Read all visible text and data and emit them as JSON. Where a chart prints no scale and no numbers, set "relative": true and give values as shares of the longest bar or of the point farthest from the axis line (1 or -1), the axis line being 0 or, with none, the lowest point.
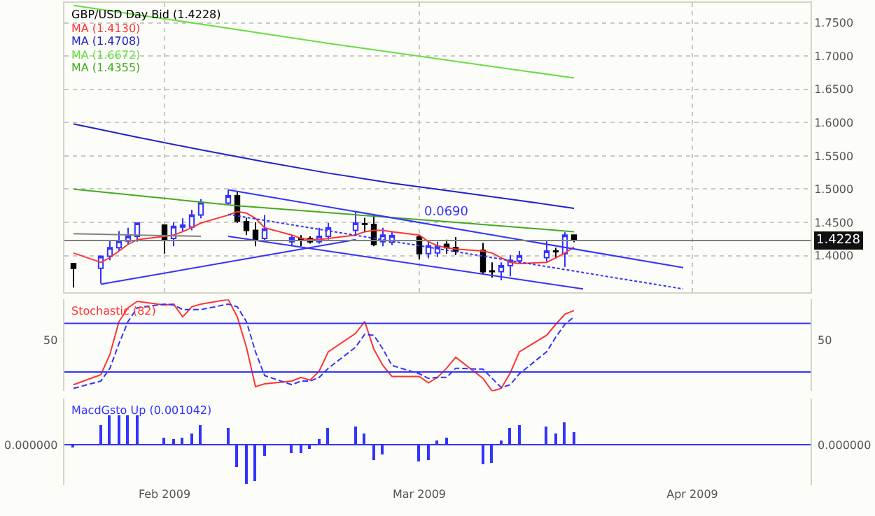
{
  "chart_data": [
    {
      "type": "candlestick",
      "legend": "top left",
      "grid": true,
      "tick_labels": "y",
      "marker": "none",
      "x": [
        "2009-01-23",
        "2009-01-26",
        "2009-01-27",
        "2009-01-28",
        "2009-01-29",
        "2009-01-30",
        "2009-02-02",
        "2009-02-03",
        "2009-02-04",
        "2009-02-05",
        "2009-02-06",
        "2009-02-09",
        "2009-02-10",
        "2009-02-11",
        "2009-02-12",
        "2009-02-13",
        "2009-02-16",
        "2009-02-17",
        "2009-02-18",
        "2009-02-19",
        "2009-02-20",
        "2009-02-23",
        "2009-02-24",
        "2009-02-25",
        "2009-02-26",
        "2009-02-27",
        "2009-03-02",
        "2009-03-03",
        "2009-03-04",
        "2009-03-05",
        "2009-03-06",
        "2009-03-09",
        "2009-03-10",
        "2009-03-11",
        "2009-03-12",
        "2009-03-13",
        "2009-03-16",
        "2009-03-17",
        "2009-03-18",
        "2009-03-19"
      ],
      "xlim": [
        "2009-01-22",
        "2009-04-14"
      ],
      "xticks": [
        {
          "value": "2009-02-02",
          "label": null
        },
        {
          "value": "2009-03-02",
          "label": null
        },
        {
          "value": "2009-04-01",
          "label": null
        }
      ],
      "ylim": [
        1.345,
        1.78
      ],
      "yticks": [
        {
          "value": 1.4,
          "label": "1.4000"
        },
        {
          "value": 1.45,
          "label": "1.4500"
        },
        {
          "value": 1.5,
          "label": "1.5000"
        },
        {
          "value": 1.55,
          "label": "1.5500"
        },
        {
          "value": 1.6,
          "label": "1.6000"
        },
        {
          "value": 1.65,
          "label": "1.6500"
        },
        {
          "value": 1.7,
          "label": "1.7000"
        },
        {
          "value": 1.75,
          "label": "1.7500"
        }
      ],
      "series": [
        {
          "type": "candlestick",
          "name": "GBP/USD Day Bid (1.4228)",
          "colors": [
            "#000000",
            "#3333ff",
            "#3333ff",
            "#3333ff",
            "#3333ff",
            "#3333ff",
            "#000000",
            "#3333ff",
            "#3333ff",
            "#3333ff",
            "#3333ff",
            "#3333ff",
            "#000000",
            "#000000",
            "#000000",
            "#3333ff",
            "#3333ff",
            "#000000",
            "#000000",
            "#3333ff",
            "#3333ff",
            "#3333ff",
            "#000000",
            "#000000",
            "#3333ff",
            "#3333ff",
            "#000000",
            "#3333ff",
            "#3333ff",
            "#000000",
            "#000000",
            "#000000",
            "#000000",
            "#3333ff",
            "#3333ff",
            "#3333ff",
            "#3333ff",
            "#000000",
            "#3333ff",
            "#000000"
          ],
          "ohlc": [
            [
              1.388,
              1.389,
              1.352,
              1.381
            ],
            [
              1.381,
              1.4,
              1.358,
              1.399
            ],
            [
              1.399,
              1.423,
              1.393,
              1.412
            ],
            [
              1.412,
              1.437,
              1.407,
              1.422
            ],
            [
              1.422,
              1.442,
              1.417,
              1.429
            ],
            [
              1.429,
              1.45,
              1.421,
              1.449
            ],
            [
              1.446,
              1.446,
              1.403,
              1.424
            ],
            [
              1.426,
              1.45,
              1.414,
              1.444
            ],
            [
              1.443,
              1.456,
              1.437,
              1.446
            ],
            [
              1.443,
              1.469,
              1.438,
              1.461
            ],
            [
              1.461,
              1.485,
              1.456,
              1.48
            ],
            [
              1.479,
              1.499,
              1.476,
              1.49
            ],
            [
              1.49,
              1.496,
              1.449,
              1.452
            ],
            [
              1.451,
              1.457,
              1.431,
              1.438
            ],
            [
              1.438,
              1.45,
              1.414,
              1.424
            ],
            [
              1.426,
              1.461,
              1.421,
              1.44
            ],
            [
              1.421,
              1.431,
              1.415,
              1.427
            ],
            [
              1.426,
              1.431,
              1.414,
              1.423
            ],
            [
              1.426,
              1.429,
              1.418,
              1.421
            ],
            [
              1.421,
              1.442,
              1.418,
              1.429
            ],
            [
              1.429,
              1.449,
              1.424,
              1.442
            ],
            [
              1.438,
              1.466,
              1.431,
              1.449
            ],
            [
              1.448,
              1.457,
              1.435,
              1.447
            ],
            [
              1.447,
              1.462,
              1.414,
              1.417
            ],
            [
              1.421,
              1.442,
              1.414,
              1.431
            ],
            [
              1.42,
              1.437,
              1.416,
              1.43
            ],
            [
              1.428,
              1.431,
              1.394,
              1.403
            ],
            [
              1.403,
              1.421,
              1.396,
              1.415
            ],
            [
              1.404,
              1.421,
              1.398,
              1.414
            ],
            [
              1.417,
              1.424,
              1.403,
              1.412
            ],
            [
              1.412,
              1.428,
              1.401,
              1.407
            ],
            [
              1.408,
              1.419,
              1.372,
              1.376
            ],
            [
              1.377,
              1.39,
              1.367,
              1.376
            ],
            [
              1.376,
              1.39,
              1.363,
              1.385
            ],
            [
              1.385,
              1.401,
              1.369,
              1.393
            ],
            [
              1.392,
              1.407,
              1.388,
              1.4
            ],
            [
              1.397,
              1.423,
              1.391,
              1.407
            ],
            [
              1.407,
              1.412,
              1.396,
              1.406
            ],
            [
              1.403,
              1.435,
              1.383,
              1.431
            ],
            [
              1.431,
              1.431,
              1.42,
              1.423
            ]
          ]
        },
        {
          "type": "line",
          "name": "MA (1.4130)",
          "color": "#ff3333",
          "values": [
            1.404,
            1.39,
            1.397,
            1.407,
            1.417,
            1.424,
            1.429,
            1.431,
            1.436,
            1.442,
            1.449,
            1.461,
            1.466,
            1.464,
            1.456,
            1.442,
            1.431,
            1.426,
            1.424,
            1.424,
            1.426,
            1.431,
            1.436,
            1.438,
            1.438,
            1.436,
            1.431,
            1.421,
            1.415,
            1.412,
            1.41,
            1.407,
            1.404,
            1.397,
            1.39,
            1.388,
            1.39,
            1.397,
            1.404,
            1.413
          ]
        },
        {
          "type": "line",
          "name": "MA (1.4708)",
          "color": "#2222cc",
          "x": [
            "2009-01-23",
            "2009-01-30",
            "2009-02-06",
            "2009-02-13",
            "2009-02-20",
            "2009-02-27",
            "2009-03-06",
            "2009-03-13",
            "2009-03-19"
          ],
          "values": [
            1.598,
            1.578,
            1.559,
            1.541,
            1.524,
            1.509,
            1.496,
            1.483,
            1.471
          ]
        },
        {
          "type": "line",
          "name": "MA (1.6672)",
          "color": "#66dd44",
          "x": [
            "2009-01-23",
            "2009-02-06",
            "2009-02-20",
            "2009-03-06",
            "2009-03-19"
          ],
          "values": [
            1.776,
            1.748,
            1.719,
            1.692,
            1.667
          ]
        },
        {
          "type": "line",
          "name": "MA (1.4355)",
          "color": "#44aa22",
          "x": [
            "2009-01-23",
            "2009-02-10",
            "2009-03-06",
            "2009-03-19"
          ],
          "values": [
            1.5,
            1.475,
            1.45,
            1.436
          ]
        },
        {
          "type": "line",
          "color": "#3333ff",
          "x": [
            "2009-02-09",
            "2009-03-31"
          ],
          "values": [
            1.499,
            1.382
          ]
        },
        {
          "type": "line",
          "color": "#3333ff",
          "x": [
            "2009-02-09",
            "2009-03-20"
          ],
          "values": [
            1.429,
            1.35
          ]
        },
        {
          "type": "line",
          "color": "#3333ff",
          "x": [
            "2009-01-26",
            "2009-02-23"
          ],
          "values": [
            1.357,
            1.424
          ]
        },
        {
          "type": "line",
          "color": "#3333ff",
          "line_style": "dotted",
          "x": [
            "2009-02-09",
            "2009-03-31"
          ],
          "values": [
            1.462,
            1.35
          ]
        },
        {
          "type": "line",
          "color": "#808080",
          "x": [
            "2009-01-23",
            "2009-02-06"
          ],
          "values": [
            1.433,
            1.429
          ]
        }
      ],
      "ref_lines": [
        {
          "axis": "y",
          "value": 1.4228,
          "label": "1.4228",
          "color": "#808080"
        }
      ],
      "annotations": [
        {
          "text": "0.0690",
          "x": "2009-03-05",
          "y": 1.451
        }
      ]
    },
    {
      "type": "line",
      "legend": "top left",
      "relative": true,
      "marker": "none",
      "x": [
        "2009-01-23",
        "2009-01-26",
        "2009-01-27",
        "2009-01-28",
        "2009-01-29",
        "2009-01-30",
        "2009-02-02",
        "2009-02-03",
        "2009-02-04",
        "2009-02-05",
        "2009-02-06",
        "2009-02-09",
        "2009-02-10",
        "2009-02-11",
        "2009-02-12",
        "2009-02-13",
        "2009-02-16",
        "2009-02-17",
        "2009-02-18",
        "2009-02-19",
        "2009-02-20",
        "2009-02-23",
        "2009-02-24",
        "2009-02-25",
        "2009-02-26",
        "2009-02-27",
        "2009-03-02",
        "2009-03-03",
        "2009-03-04",
        "2009-03-05",
        "2009-03-06",
        "2009-03-09",
        "2009-03-10",
        "2009-03-11",
        "2009-03-12",
        "2009-03-13",
        "2009-03-16",
        "2009-03-17",
        "2009-03-18",
        "2009-03-19"
      ],
      "xlim": [
        "2009-01-22",
        "2009-04-14"
      ],
      "tick_labels": false,
      "series": [
        {
          "name": "Stochastic (82)",
          "color": "#ff3333",
          "values": [
            0.07,
            0.18,
            0.4,
            0.76,
            0.91,
            0.98,
            0.94,
            0.95,
            0.81,
            0.92,
            0.95,
            1,
            0.81,
            0.48,
            0.05,
            0.08,
            0.11,
            0.15,
            0.12,
            0.22,
            0.43,
            0.63,
            0.76,
            0.46,
            0.28,
            0.16,
            0.16,
            0.09,
            0.15,
            0.25,
            0.37,
            0.14,
            0,
            0.03,
            0.2,
            0.43,
            0.61,
            0.73,
            0.84,
            0.88
          ]
        },
        {
          "color": "#3333ff",
          "line_style": "dashed",
          "values": [
            0.03,
            0.11,
            0.25,
            0.52,
            0.76,
            0.91,
            0.95,
            0.94,
            0.89,
            0.89,
            0.89,
            0.95,
            0.92,
            0.76,
            0.43,
            0.17,
            0.07,
            0.11,
            0.11,
            0.15,
            0.25,
            0.48,
            0.62,
            0.61,
            0.46,
            0.28,
            0.19,
            0.14,
            0.15,
            0.15,
            0.25,
            0.24,
            0.14,
            0.04,
            0.07,
            0.19,
            0.43,
            0.59,
            0.73,
            0.81
          ]
        }
      ],
      "ref_lines": [
        {
          "axis": "y",
          "value": 0.74,
          "color": "#3333ff"
        },
        {
          "axis": "y",
          "value": 0.21,
          "color": "#3333ff"
        }
      ],
      "annotations": [
        "50"
      ]
    },
    {
      "type": "bar",
      "legend": "top left",
      "tick_labels": "x",
      "relative": true,
      "x": [
        "2009-01-23",
        "2009-01-26",
        "2009-01-27",
        "2009-01-28",
        "2009-01-29",
        "2009-01-30",
        "2009-02-02",
        "2009-02-03",
        "2009-02-04",
        "2009-02-05",
        "2009-02-06",
        "2009-02-09",
        "2009-02-10",
        "2009-02-11",
        "2009-02-12",
        "2009-02-13",
        "2009-02-16",
        "2009-02-17",
        "2009-02-18",
        "2009-02-19",
        "2009-02-20",
        "2009-02-23",
        "2009-02-24",
        "2009-02-25",
        "2009-02-26",
        "2009-02-27",
        "2009-03-02",
        "2009-03-03",
        "2009-03-04",
        "2009-03-05",
        "2009-03-06",
        "2009-03-09",
        "2009-03-10",
        "2009-03-11",
        "2009-03-12",
        "2009-03-13",
        "2009-03-16",
        "2009-03-17",
        "2009-03-18",
        "2009-03-19"
      ],
      "xlim": [
        "2009-01-22",
        "2009-04-14"
      ],
      "xticks": [
        {
          "value": "2009-02-02",
          "label": "Feb 2009"
        },
        {
          "value": "2009-03-02",
          "label": "Mar 2009"
        },
        {
          "value": "2009-04-01",
          "label": "Apr 2009"
        }
      ],
      "series": [
        {
          "name": "MacdGsto Up (0.001042)",
          "color": "#3333ff",
          "values": [
            -0.05,
            0.52,
            0.75,
            0.75,
            0.75,
            0.75,
            0.17,
            0.15,
            0.17,
            0.28,
            0.51,
            0.45,
            -0.56,
            -1,
            -0.92,
            -0.28,
            -0.2,
            -0.2,
            -0.09,
            0.15,
            0.45,
            0.48,
            0.28,
            -0.39,
            -0.25,
            null,
            -0.43,
            -0.41,
            0.13,
            0.17,
            null,
            -0.52,
            -0.45,
            0.11,
            0.44,
            0.51,
            0.48,
            0.29,
            0.6,
            0.33
          ]
        }
      ],
      "ref_lines": [
        {
          "axis": "y",
          "value": 0,
          "label": "0.000000",
          "color": "#3333ff"
        }
      ]
    }
  ]
}
